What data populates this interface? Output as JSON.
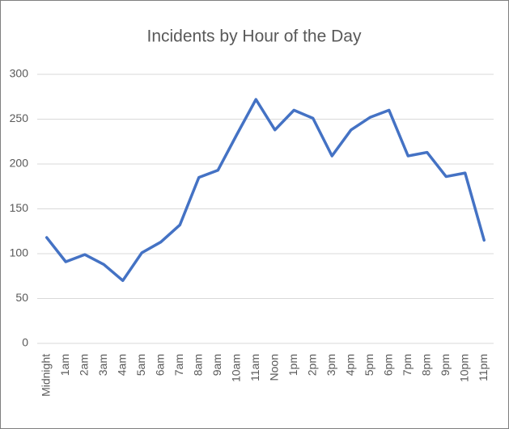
{
  "chart_data": {
    "type": "line",
    "title": "Incidents by Hour of the Day",
    "categories": [
      "Midnight",
      "1am",
      "2am",
      "3am",
      "4am",
      "5am",
      "6am",
      "7am",
      "8am",
      "9am",
      "10am",
      "11am",
      "Noon",
      "1pm",
      "2pm",
      "3pm",
      "4pm",
      "5pm",
      "6pm",
      "7pm",
      "8pm",
      "9pm",
      "10pm",
      "11pm"
    ],
    "series": [
      {
        "name": "Incidents",
        "color": "#4472c4",
        "values": [
          118,
          91,
          99,
          88,
          70,
          101,
          113,
          132,
          185,
          193,
          233,
          272,
          238,
          260,
          251,
          209,
          238,
          252,
          260,
          209,
          213,
          186,
          190,
          115
        ]
      }
    ],
    "ylim": [
      0,
      300
    ],
    "yticks": [
      0,
      50,
      100,
      150,
      200,
      250,
      300
    ],
    "grid": true
  }
}
